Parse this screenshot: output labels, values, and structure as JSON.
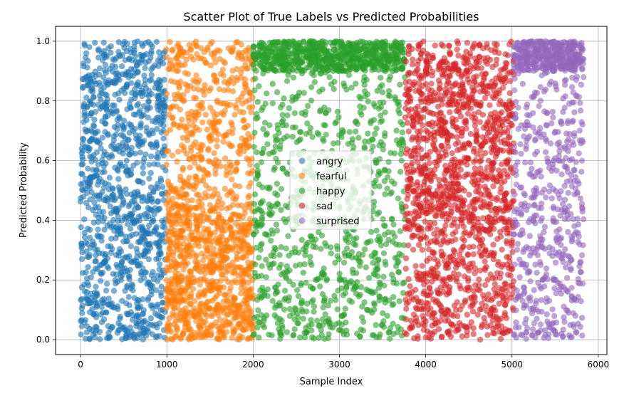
{
  "chart_data": {
    "type": "scatter",
    "title": "Scatter Plot of True Labels vs Predicted Probabilities",
    "xlabel": "Sample Index",
    "ylabel": "Predicted Probability",
    "xlim": [
      -290,
      6100
    ],
    "ylim": [
      -0.05,
      1.05
    ],
    "xticks": [
      0,
      1000,
      2000,
      3000,
      4000,
      5000,
      6000
    ],
    "xtick_labels": [
      "0",
      "1000",
      "2000",
      "3000",
      "4000",
      "5000",
      "6000"
    ],
    "yticks": [
      0.0,
      0.2,
      0.4,
      0.6,
      0.8,
      1.0
    ],
    "ytick_labels": [
      "0.0",
      "0.2",
      "0.4",
      "0.6",
      "0.8",
      "1.0"
    ],
    "grid": true,
    "legend_position": "center",
    "marker_alpha": 0.6,
    "series": [
      {
        "name": "angry",
        "color": "#1f77b4",
        "x_range": [
          0,
          990
        ],
        "count": 1100,
        "distribution": "uniform",
        "y_range": [
          0.0,
          1.0
        ]
      },
      {
        "name": "fearful",
        "color": "#ff7f0e",
        "x_range": [
          990,
          2000
        ],
        "count": 1300,
        "distribution": "uniform-dense-low",
        "y_range": [
          0.0,
          1.0
        ]
      },
      {
        "name": "happy",
        "color": "#2ca02c",
        "x_range": [
          2000,
          3760
        ],
        "count": 1600,
        "distribution": "skewed-high",
        "y_range": [
          0.0,
          1.0
        ]
      },
      {
        "name": "sad",
        "color": "#d62728",
        "x_range": [
          3760,
          5020
        ],
        "count": 1500,
        "distribution": "uniform-dense-high",
        "y_range": [
          0.0,
          1.0
        ]
      },
      {
        "name": "surprised",
        "color": "#9467bd",
        "x_range": [
          5020,
          5830
        ],
        "count": 900,
        "distribution": "skewed-high",
        "y_range": [
          0.0,
          1.0
        ]
      }
    ]
  }
}
